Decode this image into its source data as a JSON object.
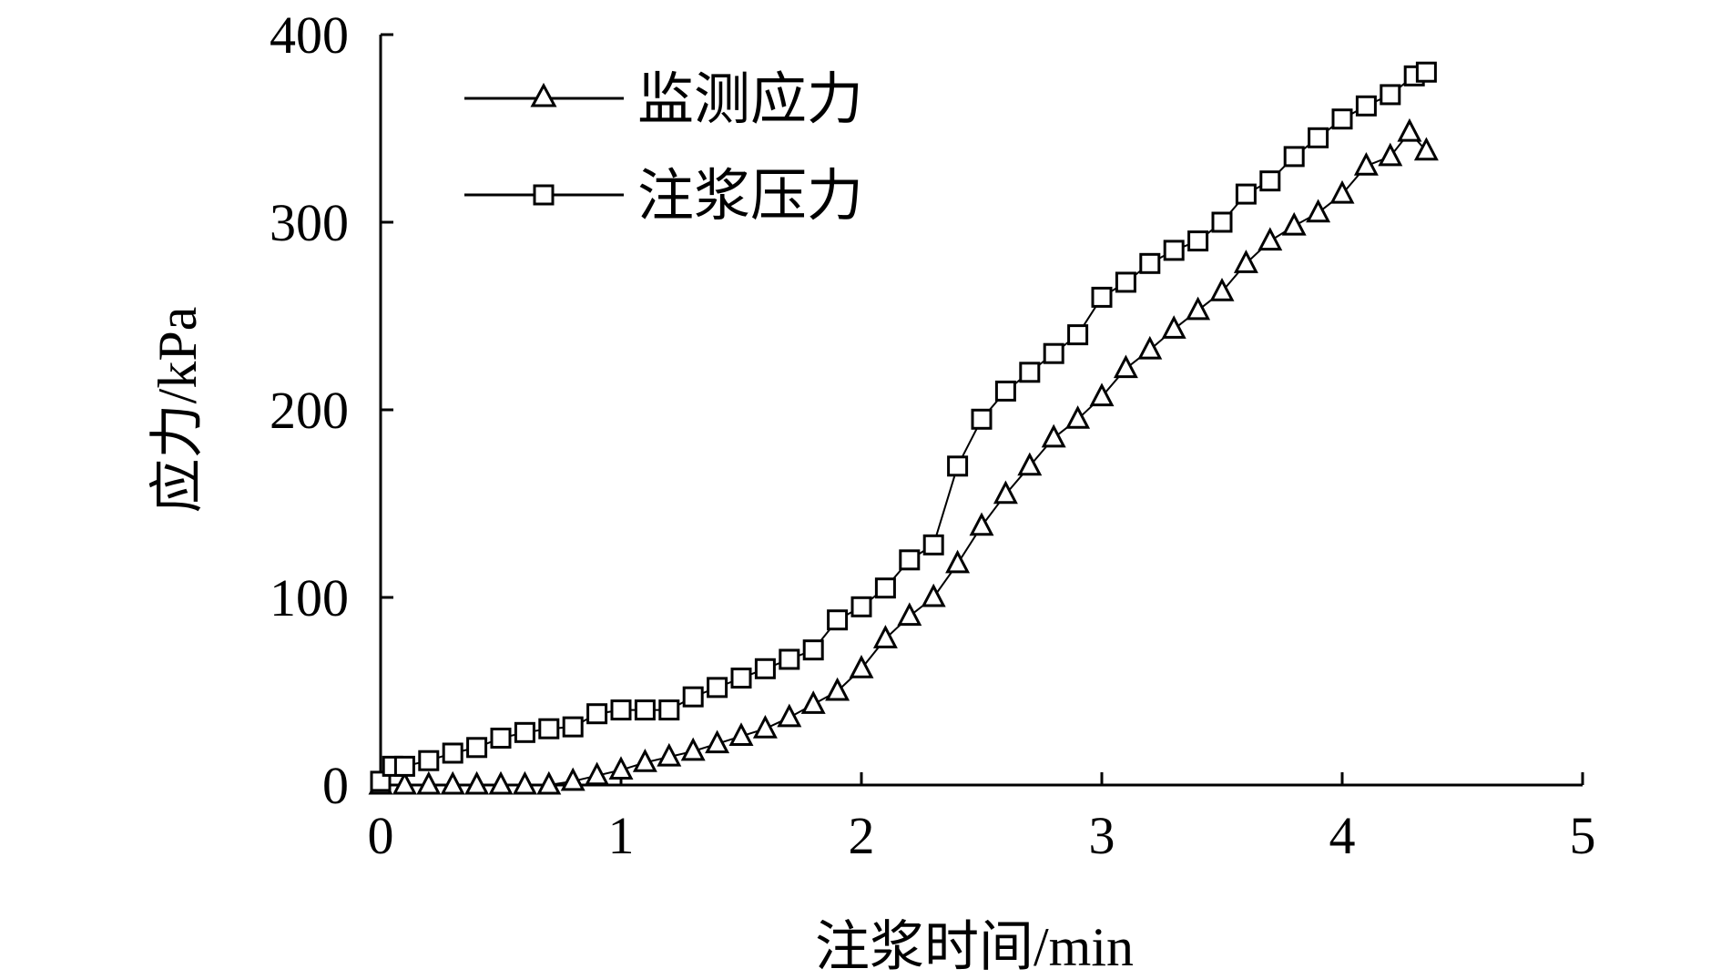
{
  "chart_data": {
    "type": "line",
    "xlabel": "注浆时间/min",
    "ylabel": "应力/kPa",
    "xlim": [
      0,
      5
    ],
    "ylim": [
      0,
      400
    ],
    "x_ticks": [
      0,
      1,
      2,
      3,
      4,
      5
    ],
    "y_ticks": [
      0,
      100,
      200,
      300,
      400
    ],
    "grid": false,
    "legend_position": "top-left",
    "series": [
      {
        "name": "监测应力",
        "marker": "triangle",
        "color": "#000000",
        "points": [
          [
            0.0,
            0
          ],
          [
            0.1,
            0
          ],
          [
            0.2,
            0
          ],
          [
            0.3,
            0
          ],
          [
            0.4,
            0
          ],
          [
            0.5,
            0
          ],
          [
            0.6,
            0
          ],
          [
            0.7,
            0
          ],
          [
            0.8,
            2
          ],
          [
            0.9,
            5
          ],
          [
            1.0,
            8
          ],
          [
            1.1,
            12
          ],
          [
            1.2,
            15
          ],
          [
            1.3,
            18
          ],
          [
            1.4,
            22
          ],
          [
            1.5,
            26
          ],
          [
            1.6,
            30
          ],
          [
            1.7,
            36
          ],
          [
            1.8,
            43
          ],
          [
            1.9,
            50
          ],
          [
            2.0,
            62
          ],
          [
            2.1,
            78
          ],
          [
            2.2,
            90
          ],
          [
            2.3,
            100
          ],
          [
            2.4,
            118
          ],
          [
            2.5,
            138
          ],
          [
            2.6,
            155
          ],
          [
            2.7,
            170
          ],
          [
            2.8,
            185
          ],
          [
            2.9,
            195
          ],
          [
            3.0,
            207
          ],
          [
            3.1,
            222
          ],
          [
            3.2,
            232
          ],
          [
            3.3,
            243
          ],
          [
            3.4,
            253
          ],
          [
            3.5,
            263
          ],
          [
            3.6,
            278
          ],
          [
            3.7,
            290
          ],
          [
            3.8,
            298
          ],
          [
            3.9,
            305
          ],
          [
            4.0,
            315
          ],
          [
            4.1,
            330
          ],
          [
            4.2,
            335
          ],
          [
            4.28,
            348
          ],
          [
            4.35,
            338
          ]
        ]
      },
      {
        "name": "注浆压力",
        "marker": "square",
        "color": "#000000",
        "points": [
          [
            0.0,
            2
          ],
          [
            0.05,
            10
          ],
          [
            0.1,
            10
          ],
          [
            0.2,
            13
          ],
          [
            0.3,
            17
          ],
          [
            0.4,
            20
          ],
          [
            0.5,
            25
          ],
          [
            0.6,
            28
          ],
          [
            0.7,
            30
          ],
          [
            0.8,
            31
          ],
          [
            0.9,
            38
          ],
          [
            1.0,
            40
          ],
          [
            1.1,
            40
          ],
          [
            1.2,
            40
          ],
          [
            1.3,
            47
          ],
          [
            1.4,
            52
          ],
          [
            1.5,
            57
          ],
          [
            1.6,
            62
          ],
          [
            1.7,
            67
          ],
          [
            1.8,
            72
          ],
          [
            1.9,
            88
          ],
          [
            2.0,
            95
          ],
          [
            2.1,
            105
          ],
          [
            2.2,
            120
          ],
          [
            2.3,
            128
          ],
          [
            2.4,
            170
          ],
          [
            2.5,
            195
          ],
          [
            2.6,
            210
          ],
          [
            2.7,
            220
          ],
          [
            2.8,
            230
          ],
          [
            2.9,
            240
          ],
          [
            3.0,
            260
          ],
          [
            3.1,
            268
          ],
          [
            3.2,
            278
          ],
          [
            3.3,
            285
          ],
          [
            3.4,
            290
          ],
          [
            3.5,
            300
          ],
          [
            3.6,
            315
          ],
          [
            3.7,
            322
          ],
          [
            3.8,
            335
          ],
          [
            3.9,
            345
          ],
          [
            4.0,
            355
          ],
          [
            4.1,
            362
          ],
          [
            4.2,
            368
          ],
          [
            4.3,
            378
          ],
          [
            4.35,
            380
          ]
        ]
      }
    ]
  }
}
